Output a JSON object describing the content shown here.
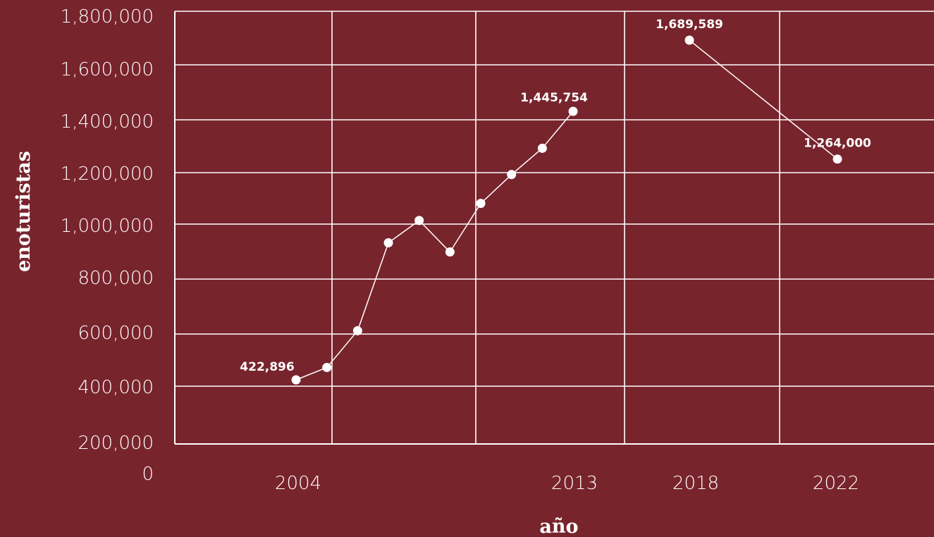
{
  "chart_data": {
    "type": "line",
    "xlabel": "año",
    "ylabel": "enoturistas",
    "y_tick_labels": [
      "0",
      "200,000",
      "400,000",
      "600,000",
      "800,000",
      "1,000,000",
      "1,200,000",
      "1,400,000",
      "1,600,000",
      "1,800,000"
    ],
    "x_tick_labels": [
      "2004",
      "2013",
      "2018",
      "2022"
    ],
    "series": [
      {
        "points": [
          {
            "x": 2004,
            "y": 422896
          },
          {
            "x": 2005,
            "y": 470000
          },
          {
            "x": 2006,
            "y": 610000
          },
          {
            "x": 2007,
            "y": 945000
          },
          {
            "x": 2008,
            "y": 1030000
          },
          {
            "x": 2009,
            "y": 910000
          },
          {
            "x": 2010,
            "y": 1095000
          },
          {
            "x": 2011,
            "y": 1205000
          },
          {
            "x": 2012,
            "y": 1305000
          },
          {
            "x": 2013,
            "y": 1445754
          }
        ]
      },
      {
        "points": [
          {
            "x": 2018,
            "y": 1689589
          },
          {
            "x": 2022,
            "y": 1264000
          }
        ]
      }
    ],
    "data_labels": [
      {
        "x": 2004,
        "y": 422896,
        "text": "422,896"
      },
      {
        "x": 2013,
        "y": 1445754,
        "text": "1,445,754"
      },
      {
        "x": 2018,
        "y": 1689589,
        "text": "1,689,589"
      },
      {
        "x": 2022,
        "y": 1264000,
        "text": "1,264,000"
      }
    ],
    "grid": true,
    "colors": {
      "background": "#78242d",
      "foreground": "#ffffff"
    }
  }
}
